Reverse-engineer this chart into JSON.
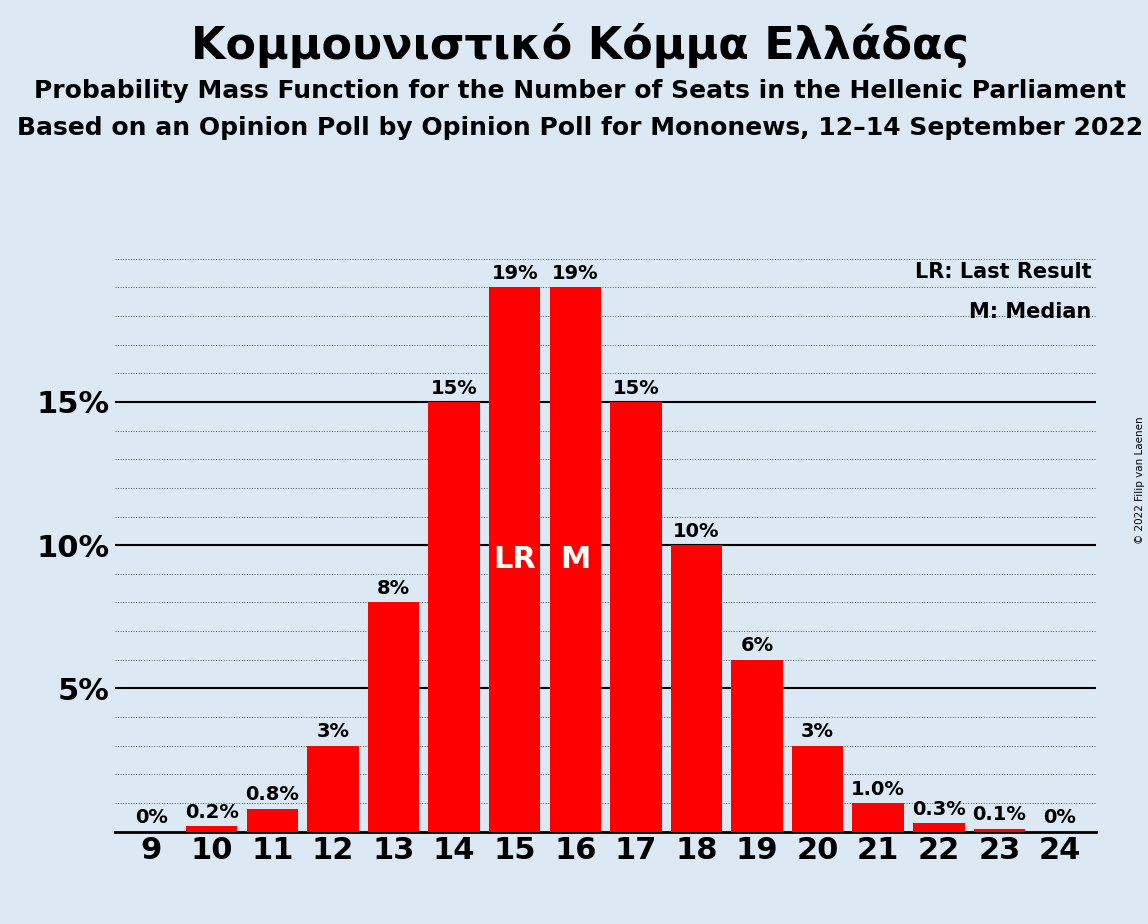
{
  "title": "Κομμουνιστικό Κόμμα Ελλάδας",
  "subtitle1": "Probability Mass Function for the Number of Seats in the Hellenic Parliament",
  "subtitle2": "Based on an Opinion Poll by Opinion Poll for Mononews, 12–14 September 2022",
  "copyright": "© 2022 Filip van Laenen",
  "legend_lr": "LR: Last Result",
  "legend_m": "M: Median",
  "categories": [
    9,
    10,
    11,
    12,
    13,
    14,
    15,
    16,
    17,
    18,
    19,
    20,
    21,
    22,
    23,
    24
  ],
  "values": [
    0.0,
    0.2,
    0.8,
    3.0,
    8.0,
    15.0,
    19.0,
    19.0,
    15.0,
    10.0,
    6.0,
    3.0,
    1.0,
    0.3,
    0.1,
    0.0
  ],
  "labels": [
    "0%",
    "0.2%",
    "0.8%",
    "3%",
    "8%",
    "15%",
    "19%",
    "19%",
    "15%",
    "10%",
    "6%",
    "3%",
    "1.0%",
    "0.3%",
    "0.1%",
    "0%"
  ],
  "bar_color": "#ff0000",
  "background_color": "#dce9f5",
  "lr_index": 6,
  "median_index": 7,
  "lr_label": "LR",
  "median_label": "M",
  "ylim": [
    0,
    20
  ],
  "title_fontsize": 32,
  "subtitle_fontsize": 18,
  "bar_label_fontsize": 14,
  "axis_label_fontsize": 22,
  "inner_label_fontsize": 22
}
